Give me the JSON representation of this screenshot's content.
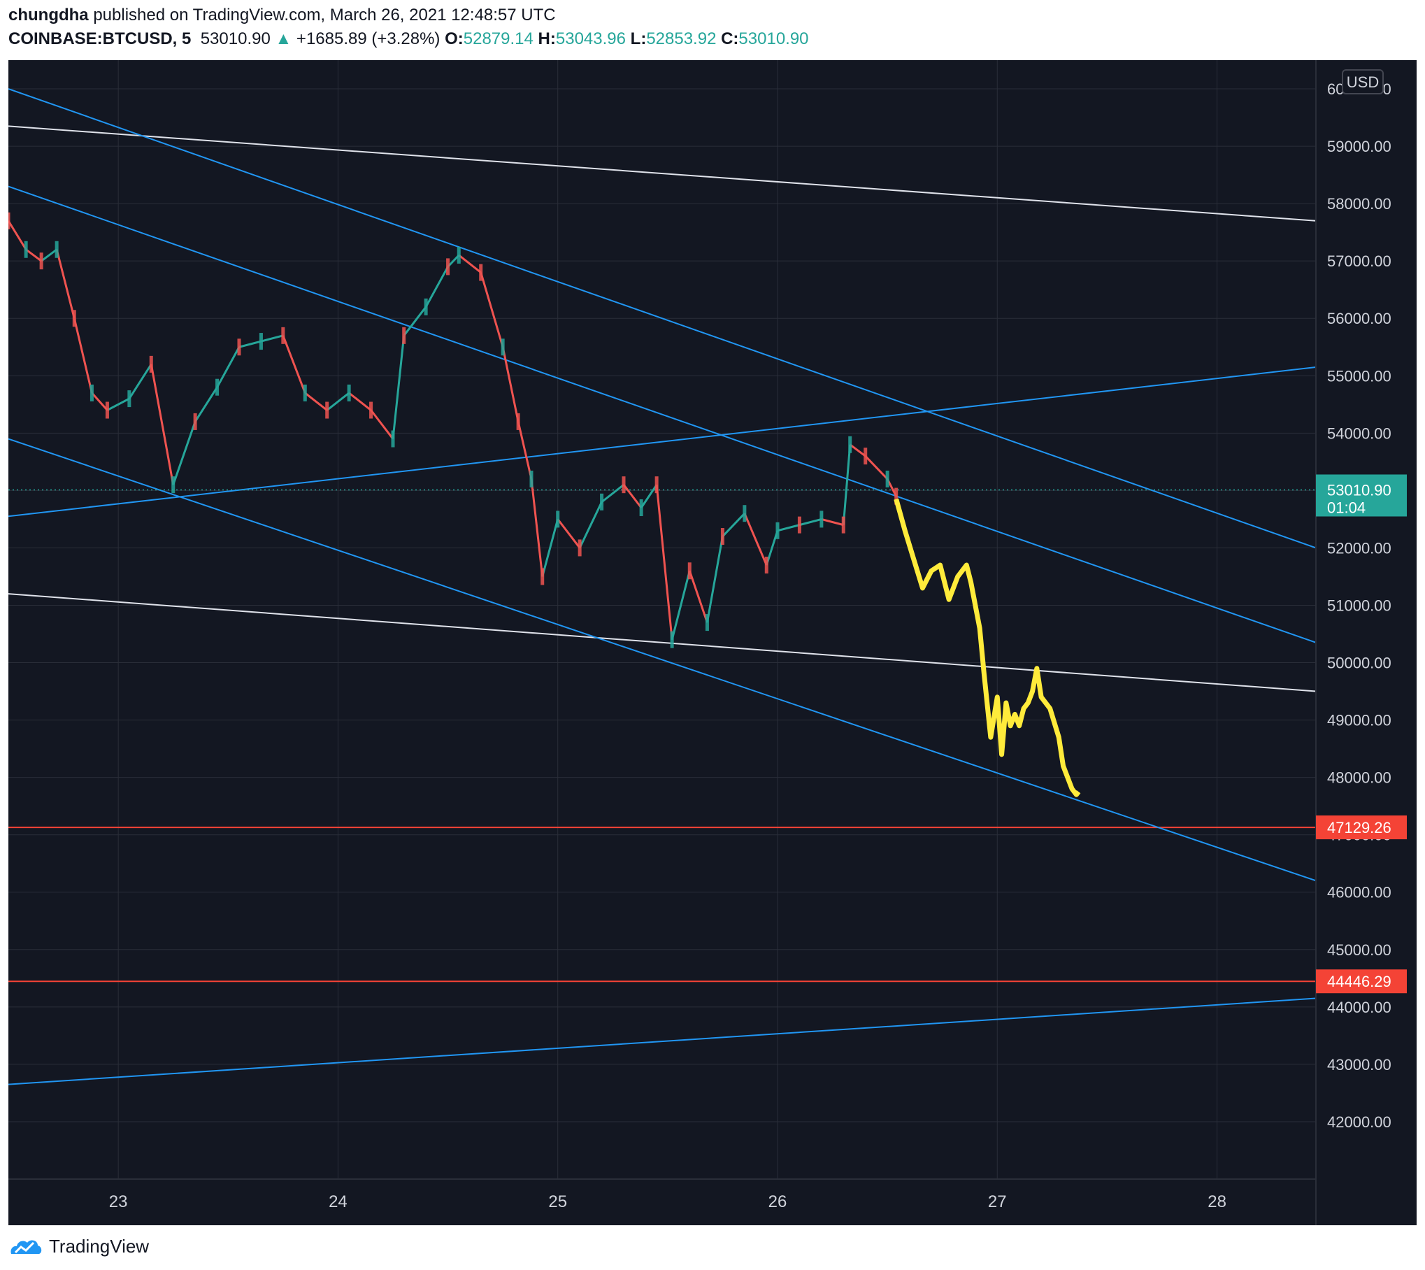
{
  "header": {
    "author": "chungdha",
    "published_text": "published on TradingView.com, March 26, 2021 12:48:57 UTC",
    "symbol": "COINBASE:BTCUSD, 5",
    "last": "53010.90",
    "arrow": "▲",
    "change": "+1685.89 (+3.28%)",
    "o_label": "O:",
    "o_val": "52879.14",
    "h_label": "H:",
    "h_val": "53043.96",
    "l_label": "L:",
    "l_val": "52853.92",
    "c_label": "C:",
    "c_val": "53010.90"
  },
  "footer": {
    "brand": "TradingView"
  },
  "colors": {
    "bg": "#131722",
    "grid": "#2a2e39",
    "axis_text": "#d1d4dc",
    "up": "#26a69a",
    "down": "#ef5350",
    "blue_line": "#2196f3",
    "white_line": "#e0e3eb",
    "projection": "#ffeb3b",
    "red_line": "#f44336",
    "price_tag": "#26a69a"
  },
  "chart_data": {
    "type": "line",
    "currency": "USD",
    "ylim": [
      41000,
      60500
    ],
    "xlim": [
      22.5,
      28.45
    ],
    "y_ticks": [
      60000,
      59000,
      58000,
      57000,
      56000,
      55000,
      54000,
      53000,
      52000,
      51000,
      50000,
      49000,
      48000,
      47000,
      46000,
      45000,
      44000,
      43000,
      42000
    ],
    "y_tick_labels": [
      "60000.00",
      "59000.00",
      "58000.00",
      "57000.00",
      "56000.00",
      "55000.00",
      "54000.00",
      "53000.00",
      "52000.00",
      "51000.00",
      "50000.00",
      "49000.00",
      "48000.00",
      "47000.00",
      "46000.00",
      "45000.00",
      "44000.00",
      "43000.00",
      "42000.00"
    ],
    "x_ticks": [
      23,
      24,
      25,
      26,
      27,
      28
    ],
    "x_tick_labels": [
      "23",
      "24",
      "25",
      "26",
      "27",
      "28"
    ],
    "current_price": {
      "value": 53010.9,
      "label": "53010.90",
      "countdown": "01:04"
    },
    "price_series": {
      "x": [
        22.5,
        22.58,
        22.65,
        22.72,
        22.8,
        22.88,
        22.95,
        23.05,
        23.15,
        23.25,
        23.35,
        23.45,
        23.55,
        23.65,
        23.75,
        23.85,
        23.95,
        24.05,
        24.15,
        24.25,
        24.3,
        24.4,
        24.5,
        24.55,
        24.65,
        24.75,
        24.82,
        24.88,
        24.93,
        25.0,
        25.1,
        25.2,
        25.3,
        25.38,
        25.45,
        25.52,
        25.6,
        25.68,
        25.75,
        25.85,
        25.95,
        26.0,
        26.1,
        26.2,
        26.3,
        26.33,
        26.4,
        26.5,
        26.54
      ],
      "values": [
        57700,
        57200,
        57000,
        57200,
        56000,
        54700,
        54400,
        54600,
        55200,
        53100,
        54200,
        54800,
        55500,
        55600,
        55700,
        54700,
        54400,
        54700,
        54400,
        53900,
        55700,
        56200,
        56900,
        57100,
        56800,
        55500,
        54200,
        53200,
        51500,
        52500,
        52000,
        52800,
        53100,
        52700,
        53100,
        50400,
        51600,
        50700,
        52200,
        52600,
        51700,
        52300,
        52400,
        52500,
        52400,
        53800,
        53600,
        53200,
        52900
      ]
    },
    "projection": {
      "x": [
        26.54,
        26.58,
        26.62,
        26.66,
        26.7,
        26.74,
        26.78,
        26.82,
        26.86,
        26.88,
        26.92,
        26.94,
        26.97,
        27.0,
        27.02,
        27.04,
        27.06,
        27.08,
        27.1,
        27.12,
        27.14,
        27.16,
        27.18,
        27.2,
        27.24,
        27.28,
        27.3,
        27.32,
        27.34,
        27.36,
        27.37
      ],
      "values": [
        52850,
        52300,
        51800,
        51300,
        51600,
        51700,
        51100,
        51500,
        51700,
        51400,
        50600,
        49800,
        48700,
        49400,
        48400,
        49300,
        48900,
        49100,
        48900,
        49200,
        49300,
        49500,
        49900,
        49400,
        49200,
        48700,
        48200,
        48000,
        47800,
        47700,
        47750
      ]
    },
    "trendlines": [
      {
        "color": "white",
        "from": [
          22.5,
          59350
        ],
        "to": [
          28.45,
          57700
        ]
      },
      {
        "color": "white",
        "from": [
          22.5,
          51200
        ],
        "to": [
          28.45,
          49500
        ]
      },
      {
        "color": "blue",
        "from": [
          22.5,
          60000
        ],
        "to": [
          28.45,
          52000
        ]
      },
      {
        "color": "blue",
        "from": [
          22.5,
          58300
        ],
        "to": [
          28.45,
          50350
        ]
      },
      {
        "color": "blue",
        "from": [
          22.5,
          53900
        ],
        "to": [
          28.45,
          46200
        ]
      },
      {
        "color": "blue",
        "from": [
          22.5,
          52550
        ],
        "to": [
          28.45,
          55150
        ]
      },
      {
        "color": "blue",
        "from": [
          22.5,
          42650
        ],
        "to": [
          28.45,
          44150
        ]
      }
    ],
    "horizontal_levels": [
      {
        "value": 47129.26,
        "label": "47129.26"
      },
      {
        "value": 44446.29,
        "label": "44446.29"
      }
    ]
  }
}
